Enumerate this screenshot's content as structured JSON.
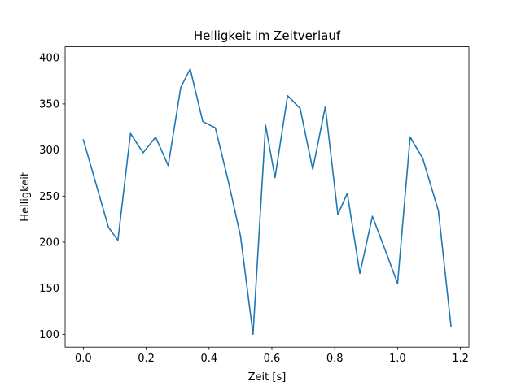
{
  "chart_data": {
    "type": "line",
    "title": "Helligkeit im Zeitverlauf",
    "xlabel": "Zeit [s]",
    "ylabel": "Helligkeit",
    "xlim": [
      -0.058,
      1.227
    ],
    "ylim": [
      86,
      412
    ],
    "xticks": [
      0.0,
      0.2,
      0.4,
      0.6,
      0.8,
      1.0,
      1.2
    ],
    "xtick_labels": [
      "0.0",
      "0.2",
      "0.4",
      "0.6",
      "0.8",
      "1.0",
      "1.2"
    ],
    "yticks": [
      100,
      150,
      200,
      250,
      300,
      350,
      400
    ],
    "ytick_labels": [
      "100",
      "150",
      "200",
      "250",
      "300",
      "350",
      "400"
    ],
    "grid": false,
    "legend": "none",
    "line_color": "#1f77b4",
    "series": [
      {
        "x": [
          0.0,
          0.08,
          0.11,
          0.15,
          0.19,
          0.23,
          0.27,
          0.31,
          0.34,
          0.38,
          0.42,
          0.46,
          0.5,
          0.54,
          0.58,
          0.61,
          0.65,
          0.69,
          0.73,
          0.77,
          0.81,
          0.84,
          0.88,
          0.92,
          0.96,
          1.0,
          1.04,
          1.08,
          1.13,
          1.17
        ],
        "y": [
          311,
          216,
          202,
          318,
          297,
          314,
          283,
          368,
          388,
          331,
          324,
          268,
          207,
          100,
          327,
          270,
          359,
          345,
          279,
          347,
          230,
          253,
          166,
          228,
          192,
          155,
          314,
          291,
          234,
          109
        ]
      }
    ]
  }
}
